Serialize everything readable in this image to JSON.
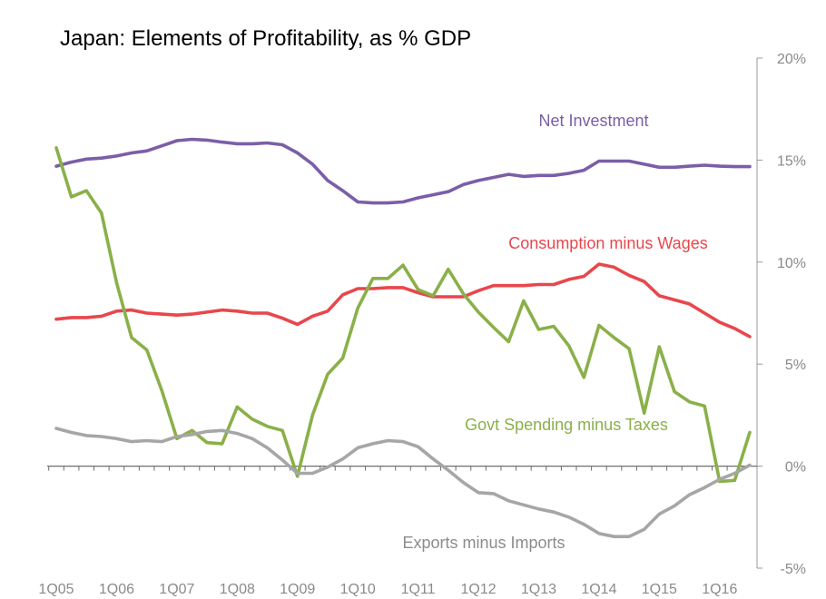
{
  "chart_data": {
    "type": "line",
    "title": "Japan: Elements of Profitability, as % GDP",
    "xlabel": "",
    "ylabel": "",
    "x": [
      "1Q05",
      "2Q05",
      "3Q05",
      "4Q05",
      "1Q06",
      "2Q06",
      "3Q06",
      "4Q06",
      "1Q07",
      "2Q07",
      "3Q07",
      "4Q07",
      "1Q08",
      "2Q08",
      "3Q08",
      "4Q08",
      "1Q09",
      "2Q09",
      "3Q09",
      "4Q09",
      "1Q10",
      "2Q10",
      "3Q10",
      "4Q10",
      "1Q11",
      "2Q11",
      "3Q11",
      "4Q11",
      "1Q12",
      "2Q12",
      "3Q12",
      "4Q12",
      "1Q13",
      "2Q13",
      "3Q13",
      "4Q13",
      "1Q14",
      "2Q14",
      "3Q14",
      "4Q14",
      "1Q15",
      "2Q15",
      "3Q15",
      "4Q15",
      "1Q16",
      "2Q16",
      "3Q16"
    ],
    "x_tick_labels": [
      "1Q05",
      "1Q06",
      "1Q07",
      "1Q08",
      "1Q09",
      "1Q10",
      "1Q11",
      "1Q12",
      "1Q13",
      "1Q14",
      "1Q15",
      "1Q16"
    ],
    "y_ticks": [
      "20%",
      "15%",
      "10%",
      "5%",
      "0%",
      "-5%"
    ],
    "y_tick_values": [
      20,
      15,
      10,
      5,
      0,
      -5
    ],
    "ylim": [
      -5,
      20
    ],
    "y_axis_side": "right",
    "grid": false,
    "series": [
      {
        "name": "Net Investment",
        "color": "#7b5ea7",
        "values": [
          14.7,
          14.9,
          15.05,
          15.1,
          15.2,
          15.35,
          15.45,
          15.7,
          15.95,
          16.02,
          15.98,
          15.88,
          15.8,
          15.8,
          15.84,
          15.75,
          15.35,
          14.8,
          14.0,
          13.5,
          12.95,
          12.9,
          12.9,
          12.95,
          13.15,
          13.3,
          13.45,
          13.8,
          14.0,
          14.15,
          14.3,
          14.2,
          14.25,
          14.25,
          14.35,
          14.5,
          14.95,
          14.95,
          14.95,
          14.8,
          14.65,
          14.65,
          14.7,
          14.75,
          14.7,
          14.68,
          14.68
        ]
      },
      {
        "name": "Consumption minus Wages",
        "color": "#e8474c",
        "values": [
          7.2,
          7.28,
          7.28,
          7.35,
          7.6,
          7.65,
          7.5,
          7.45,
          7.4,
          7.45,
          7.55,
          7.65,
          7.6,
          7.5,
          7.5,
          7.25,
          6.95,
          7.35,
          7.6,
          8.4,
          8.7,
          8.7,
          8.75,
          8.75,
          8.5,
          8.3,
          8.3,
          8.3,
          8.6,
          8.85,
          8.85,
          8.85,
          8.9,
          8.9,
          9.15,
          9.3,
          9.9,
          9.75,
          9.35,
          9.05,
          8.35,
          8.15,
          7.95,
          7.5,
          7.05,
          6.75,
          6.35
        ]
      },
      {
        "name": "Govt Spending minus Taxes",
        "color": "#8ab049",
        "values": [
          15.6,
          13.2,
          13.5,
          12.4,
          9.0,
          6.3,
          5.7,
          3.7,
          1.35,
          1.75,
          1.15,
          1.1,
          2.9,
          2.3,
          1.95,
          1.75,
          -0.5,
          2.5,
          4.5,
          5.3,
          7.75,
          9.2,
          9.2,
          9.85,
          8.65,
          8.35,
          9.65,
          8.45,
          7.55,
          6.8,
          6.1,
          8.1,
          6.7,
          6.85,
          5.9,
          4.35,
          6.9,
          6.3,
          5.75,
          2.6,
          5.85,
          3.65,
          3.15,
          2.95,
          -0.75,
          -0.7,
          1.65
        ]
      },
      {
        "name": "Exports minus Imports",
        "color": "#a6a6a6",
        "values": [
          1.85,
          1.65,
          1.5,
          1.45,
          1.35,
          1.2,
          1.25,
          1.2,
          1.45,
          1.55,
          1.7,
          1.75,
          1.6,
          1.35,
          0.9,
          0.3,
          -0.35,
          -0.35,
          -0.05,
          0.35,
          0.9,
          1.1,
          1.25,
          1.2,
          0.95,
          0.35,
          -0.2,
          -0.8,
          -1.3,
          -1.35,
          -1.7,
          -1.9,
          -2.1,
          -2.25,
          -2.5,
          -2.85,
          -3.3,
          -3.45,
          -3.45,
          -3.1,
          -2.35,
          -1.95,
          -1.4,
          -1.05,
          -0.65,
          -0.35,
          0.05
        ]
      }
    ]
  }
}
